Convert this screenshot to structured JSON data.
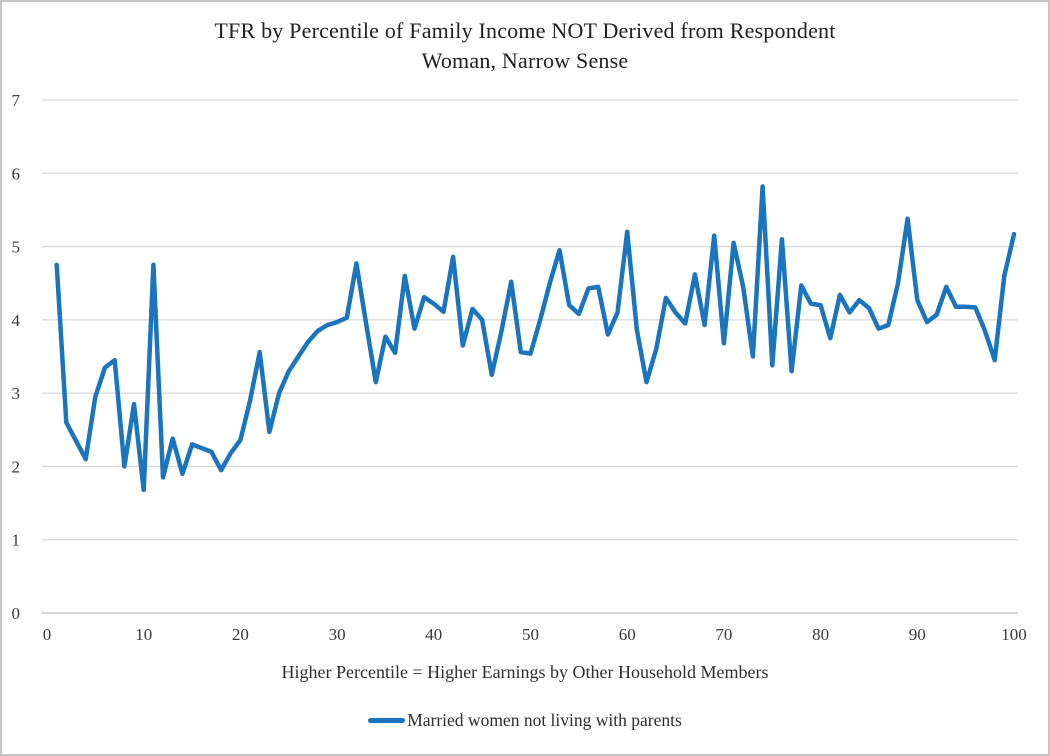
{
  "title": {
    "line1": "TFR by Percentile of Family Income NOT Derived from Respondent",
    "line2": "Woman, Narrow Sense"
  },
  "x_axis": {
    "label": "Higher Percentile = Higher Earnings by Other Household Members",
    "ticks": [
      0,
      10,
      20,
      30,
      40,
      50,
      60,
      70,
      80,
      90,
      100
    ]
  },
  "y_axis": {
    "ticks": [
      0,
      1,
      2,
      3,
      4,
      5,
      6,
      7
    ]
  },
  "legend": {
    "series_label": "Married women not living with parents"
  },
  "colors": {
    "series_line": "#1b75be",
    "gridline": "#d9d9d9",
    "axis_line": "#bfbfbf",
    "tick_text": "#3a3a3a",
    "title_text": "#212121"
  },
  "chart_data": {
    "type": "line",
    "title": "TFR by Percentile of Family Income NOT Derived from Respondent Woman, Narrow Sense",
    "xlabel": "Higher Percentile = Higher Earnings by Other Household Members",
    "ylabel": "",
    "xlim": [
      0,
      100
    ],
    "ylim": [
      0,
      7
    ],
    "grid": true,
    "legend_position": "bottom",
    "series": [
      {
        "name": "Married women not living with parents",
        "x_range": {
          "start": 1,
          "end": 100,
          "step": 1
        },
        "values": [
          4.75,
          2.6,
          2.35,
          2.1,
          2.95,
          3.35,
          3.45,
          2.0,
          2.85,
          1.68,
          4.75,
          1.85,
          2.38,
          1.9,
          2.3,
          2.25,
          2.2,
          1.95,
          2.18,
          2.36,
          2.9,
          3.56,
          2.47,
          3.0,
          3.3,
          3.5,
          3.7,
          3.85,
          3.93,
          3.97,
          4.03,
          4.77,
          3.95,
          3.15,
          3.77,
          3.55,
          4.6,
          3.88,
          4.31,
          4.22,
          4.11,
          4.86,
          3.65,
          4.15,
          4.0,
          3.25,
          3.85,
          4.52,
          3.56,
          3.54,
          4.0,
          4.5,
          4.95,
          4.2,
          4.08,
          4.43,
          4.45,
          3.8,
          4.1,
          5.2,
          3.86,
          3.15,
          3.6,
          4.3,
          4.1,
          3.95,
          4.62,
          3.93,
          5.15,
          3.68,
          5.05,
          4.45,
          3.5,
          5.82,
          3.38,
          5.1,
          3.3,
          4.47,
          4.22,
          4.2,
          3.75,
          4.34,
          4.1,
          4.27,
          4.16,
          3.88,
          3.93,
          4.5,
          5.38,
          4.27,
          3.97,
          4.07,
          4.45,
          4.18,
          4.18,
          4.17,
          3.85,
          3.45,
          4.6,
          5.17
        ]
      }
    ]
  }
}
